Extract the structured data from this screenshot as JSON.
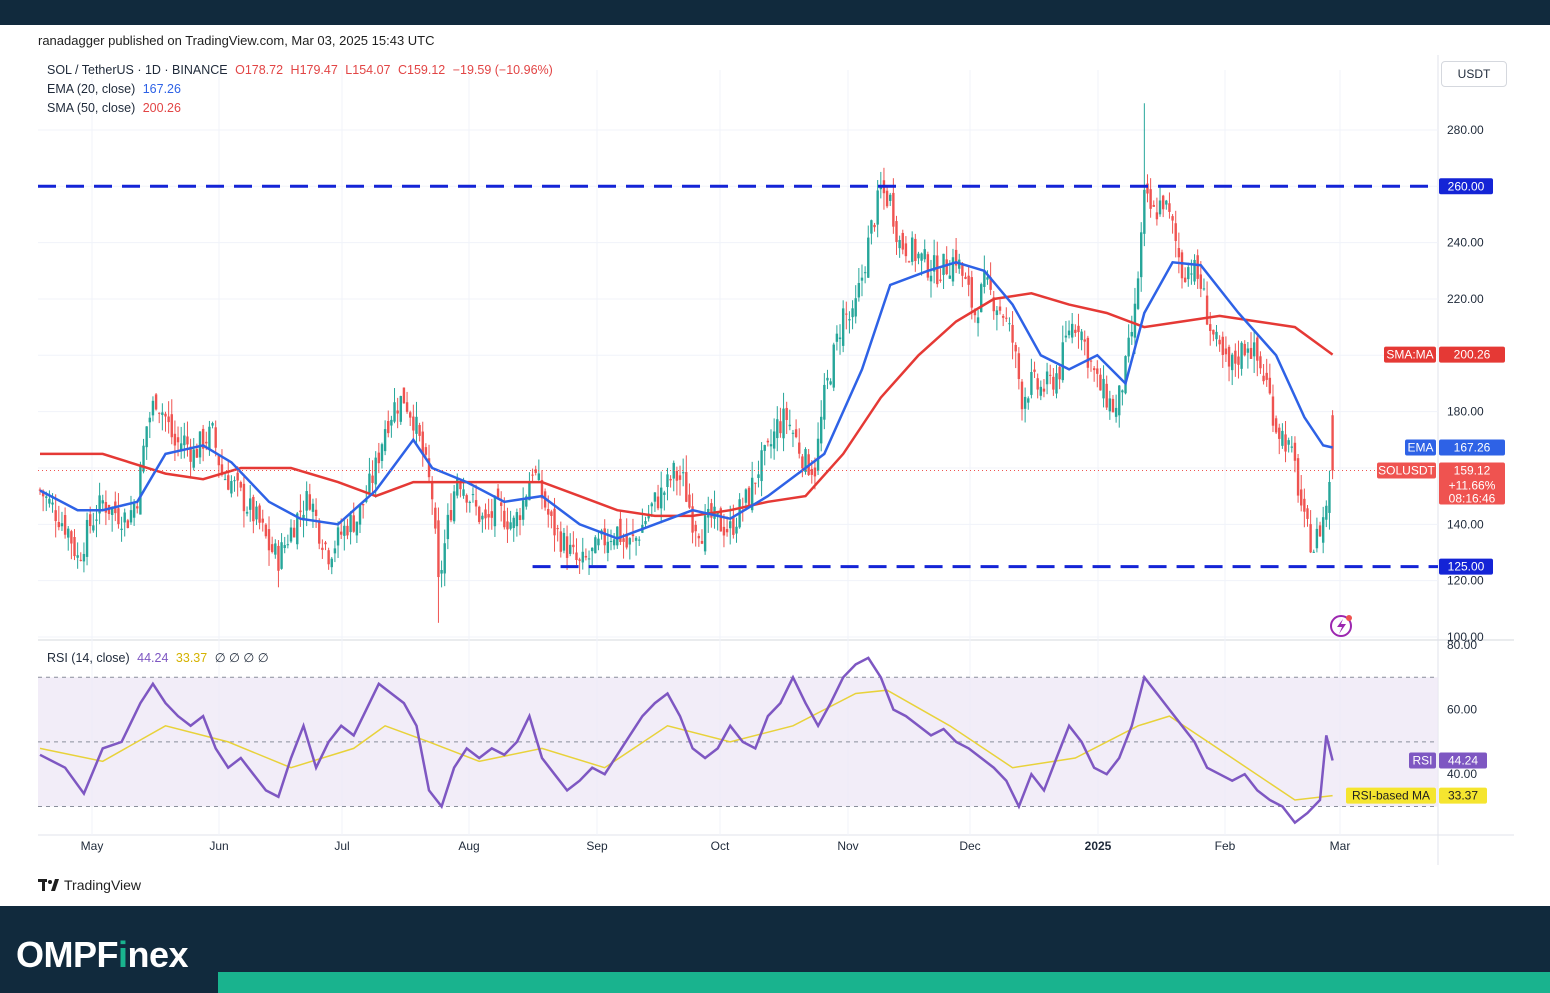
{
  "publisher": "ranadagger published on TradingView.com, Mar 03, 2025 15:43 UTC",
  "currency_button": "USDT",
  "legend": {
    "symbol": "SOL / TetherUS · 1D · BINANCE",
    "open": "O178.72",
    "high": "H179.47",
    "low": "L154.07",
    "close": "C159.12",
    "change": "−19.59 (−10.96%)",
    "ema_label": "EMA (20, close)",
    "ema_value": "167.26",
    "sma_label": "SMA (50, close)",
    "sma_value": "200.26",
    "rsi_label": "RSI (14, close)",
    "rsi_value": "44.24",
    "rsi_ma_value": "33.37",
    "rsi_extra": "∅ ∅ ∅ ∅"
  },
  "footer_logo": "TradingView",
  "brand": {
    "part1": "OMPF",
    "part2": "i",
    "part3": "nex"
  },
  "colors": {
    "up": "#26a69a",
    "down": "#ef5350",
    "ema": "#2e62e6",
    "sma": "#e53935",
    "level": "#1424d6",
    "rsi": "#7e57c2",
    "rsi_ma": "#e8d23a",
    "band_dark": "#112a3d",
    "band_accent": "#19b38e"
  },
  "chart_data": {
    "type": "candlestick",
    "price_axis": {
      "min": 100,
      "max": 300,
      "ticks": [
        "100.00",
        "120.00",
        "140.00",
        "180.00",
        "220.00",
        "240.00",
        "280.00"
      ]
    },
    "rsi_axis": {
      "min": 20,
      "max": 80,
      "ticks": [
        "40.00",
        "60.00",
        "80.00"
      ],
      "bands": [
        30,
        70
      ],
      "mid": 50
    },
    "time_axis": [
      "May",
      "Jun",
      "Jul",
      "Aug",
      "Sep",
      "Oct",
      "Nov",
      "Dec",
      "2025",
      "Feb",
      "Mar"
    ],
    "horizontal_levels": [
      {
        "value": 260,
        "label": "260.00"
      },
      {
        "value": 125,
        "label": "125.00"
      }
    ],
    "price_tags": [
      {
        "name": "SMA:MA",
        "value": 200.26,
        "label": "200.26"
      },
      {
        "name": "EMA",
        "value": 167.26,
        "label": "167.26"
      },
      {
        "name": "SOLUSDT",
        "value": 159.12,
        "label": "159.12",
        "change": "+11.66%",
        "countdown": "08:16:46"
      }
    ],
    "rsi_tags": [
      {
        "name": "RSI",
        "value": 44.24,
        "label": "44.24"
      },
      {
        "name": "RSI-based MA",
        "value": 33.37,
        "label": "33.37"
      }
    ],
    "close_path": [
      [
        0,
        152
      ],
      [
        4,
        146
      ],
      [
        9,
        138
      ],
      [
        12,
        128
      ],
      [
        16,
        140
      ],
      [
        20,
        148
      ],
      [
        23,
        145
      ],
      [
        28,
        142
      ],
      [
        31,
        150
      ],
      [
        34,
        175
      ],
      [
        37,
        185
      ],
      [
        40,
        178
      ],
      [
        43,
        168
      ],
      [
        46,
        170
      ],
      [
        49,
        165
      ],
      [
        52,
        170
      ],
      [
        55,
        172
      ],
      [
        58,
        158
      ],
      [
        61,
        155
      ],
      [
        64,
        150
      ],
      [
        67,
        145
      ],
      [
        70,
        140
      ],
      [
        73,
        132
      ],
      [
        76,
        128
      ],
      [
        80,
        138
      ],
      [
        83,
        145
      ],
      [
        86,
        150
      ],
      [
        89,
        138
      ],
      [
        92,
        130
      ],
      [
        95,
        135
      ],
      [
        98,
        140
      ],
      [
        101,
        142
      ],
      [
        104,
        150
      ],
      [
        107,
        160
      ],
      [
        110,
        175
      ],
      [
        113,
        182
      ],
      [
        116,
        185
      ],
      [
        119,
        178
      ],
      [
        122,
        165
      ],
      [
        125,
        150
      ],
      [
        127,
        118
      ],
      [
        130,
        140
      ],
      [
        133,
        158
      ],
      [
        136,
        152
      ],
      [
        139,
        145
      ],
      [
        142,
        140
      ],
      [
        145,
        145
      ],
      [
        148,
        143
      ],
      [
        151,
        140
      ],
      [
        154,
        148
      ],
      [
        157,
        160
      ],
      [
        160,
        150
      ],
      [
        163,
        140
      ],
      [
        166,
        135
      ],
      [
        169,
        130
      ],
      [
        172,
        125
      ],
      [
        175,
        128
      ],
      [
        178,
        132
      ],
      [
        181,
        136
      ],
      [
        184,
        138
      ],
      [
        187,
        132
      ],
      [
        190,
        135
      ],
      [
        193,
        142
      ],
      [
        196,
        148
      ],
      [
        199,
        152
      ],
      [
        202,
        158
      ],
      [
        205,
        155
      ],
      [
        208,
        142
      ],
      [
        211,
        138
      ],
      [
        214,
        142
      ],
      [
        217,
        140
      ],
      [
        220,
        138
      ],
      [
        223,
        145
      ],
      [
        226,
        150
      ],
      [
        229,
        160
      ],
      [
        232,
        165
      ],
      [
        235,
        175
      ],
      [
        238,
        178
      ],
      [
        241,
        170
      ],
      [
        244,
        162
      ],
      [
        247,
        160
      ],
      [
        250,
        185
      ],
      [
        253,
        200
      ],
      [
        256,
        215
      ],
      [
        259,
        212
      ],
      [
        262,
        228
      ],
      [
        265,
        245
      ],
      [
        268,
        258
      ],
      [
        271,
        255
      ],
      [
        274,
        240
      ],
      [
        277,
        238
      ],
      [
        280,
        235
      ],
      [
        283,
        232
      ],
      [
        286,
        230
      ],
      [
        289,
        232
      ],
      [
        292,
        235
      ],
      [
        295,
        225
      ],
      [
        298,
        215
      ],
      [
        301,
        225
      ],
      [
        304,
        220
      ],
      [
        307,
        215
      ],
      [
        310,
        205
      ],
      [
        313,
        185
      ],
      [
        316,
        190
      ],
      [
        319,
        188
      ],
      [
        322,
        190
      ],
      [
        325,
        195
      ],
      [
        328,
        210
      ],
      [
        331,
        212
      ],
      [
        334,
        200
      ],
      [
        337,
        190
      ],
      [
        340,
        185
      ],
      [
        343,
        180
      ],
      [
        346,
        195
      ],
      [
        349,
        215
      ],
      [
        352,
        255
      ],
      [
        355,
        250
      ],
      [
        358,
        255
      ],
      [
        361,
        245
      ],
      [
        364,
        230
      ],
      [
        367,
        232
      ],
      [
        370,
        225
      ],
      [
        373,
        210
      ],
      [
        376,
        200
      ],
      [
        379,
        195
      ],
      [
        382,
        200
      ],
      [
        385,
        205
      ],
      [
        388,
        198
      ],
      [
        391,
        190
      ],
      [
        394,
        175
      ],
      [
        397,
        170
      ],
      [
        400,
        160
      ],
      [
        403,
        140
      ],
      [
        406,
        132
      ],
      [
        409,
        142
      ],
      [
        412,
        159
      ]
    ],
    "ema_path": [
      [
        0,
        152
      ],
      [
        12,
        145
      ],
      [
        20,
        145
      ],
      [
        31,
        148
      ],
      [
        40,
        165
      ],
      [
        52,
        168
      ],
      [
        61,
        162
      ],
      [
        73,
        148
      ],
      [
        83,
        142
      ],
      [
        95,
        140
      ],
      [
        107,
        152
      ],
      [
        119,
        170
      ],
      [
        125,
        160
      ],
      [
        136,
        155
      ],
      [
        148,
        148
      ],
      [
        160,
        150
      ],
      [
        172,
        140
      ],
      [
        184,
        135
      ],
      [
        196,
        140
      ],
      [
        208,
        145
      ],
      [
        220,
        142
      ],
      [
        232,
        150
      ],
      [
        244,
        160
      ],
      [
        250,
        165
      ],
      [
        262,
        195
      ],
      [
        271,
        225
      ],
      [
        283,
        230
      ],
      [
        292,
        233
      ],
      [
        301,
        230
      ],
      [
        310,
        218
      ],
      [
        319,
        200
      ],
      [
        328,
        195
      ],
      [
        337,
        200
      ],
      [
        346,
        190
      ],
      [
        352,
        215
      ],
      [
        361,
        233
      ],
      [
        370,
        232
      ],
      [
        382,
        215
      ],
      [
        394,
        200
      ],
      [
        403,
        178
      ],
      [
        409,
        168
      ],
      [
        412,
        167.26
      ]
    ],
    "sma_path": [
      [
        0,
        165
      ],
      [
        20,
        165
      ],
      [
        40,
        158
      ],
      [
        52,
        156
      ],
      [
        64,
        160
      ],
      [
        80,
        160
      ],
      [
        95,
        155
      ],
      [
        107,
        150
      ],
      [
        119,
        155
      ],
      [
        130,
        155
      ],
      [
        148,
        155
      ],
      [
        160,
        155
      ],
      [
        172,
        150
      ],
      [
        184,
        145
      ],
      [
        196,
        143
      ],
      [
        208,
        143
      ],
      [
        220,
        145
      ],
      [
        232,
        148
      ],
      [
        244,
        150
      ],
      [
        256,
        165
      ],
      [
        268,
        185
      ],
      [
        280,
        200
      ],
      [
        292,
        212
      ],
      [
        304,
        220
      ],
      [
        316,
        222
      ],
      [
        328,
        218
      ],
      [
        340,
        215
      ],
      [
        352,
        210
      ],
      [
        364,
        212
      ],
      [
        376,
        214
      ],
      [
        388,
        212
      ],
      [
        400,
        210
      ],
      [
        412,
        200.26
      ]
    ],
    "rsi_path": [
      [
        0,
        46
      ],
      [
        8,
        42
      ],
      [
        14,
        34
      ],
      [
        20,
        48
      ],
      [
        26,
        50
      ],
      [
        32,
        62
      ],
      [
        36,
        68
      ],
      [
        40,
        62
      ],
      [
        44,
        58
      ],
      [
        48,
        55
      ],
      [
        52,
        58
      ],
      [
        56,
        48
      ],
      [
        60,
        42
      ],
      [
        64,
        45
      ],
      [
        68,
        40
      ],
      [
        72,
        35
      ],
      [
        76,
        33
      ],
      [
        80,
        45
      ],
      [
        84,
        55
      ],
      [
        88,
        42
      ],
      [
        92,
        50
      ],
      [
        96,
        55
      ],
      [
        100,
        52
      ],
      [
        104,
        60
      ],
      [
        108,
        68
      ],
      [
        112,
        65
      ],
      [
        116,
        62
      ],
      [
        120,
        55
      ],
      [
        124,
        35
      ],
      [
        128,
        30
      ],
      [
        132,
        42
      ],
      [
        136,
        48
      ],
      [
        140,
        45
      ],
      [
        144,
        48
      ],
      [
        148,
        46
      ],
      [
        152,
        50
      ],
      [
        156,
        58
      ],
      [
        160,
        45
      ],
      [
        164,
        40
      ],
      [
        168,
        35
      ],
      [
        172,
        38
      ],
      [
        176,
        42
      ],
      [
        180,
        40
      ],
      [
        184,
        46
      ],
      [
        188,
        52
      ],
      [
        192,
        58
      ],
      [
        196,
        62
      ],
      [
        200,
        65
      ],
      [
        204,
        58
      ],
      [
        208,
        48
      ],
      [
        212,
        45
      ],
      [
        216,
        48
      ],
      [
        220,
        55
      ],
      [
        224,
        50
      ],
      [
        228,
        48
      ],
      [
        232,
        58
      ],
      [
        236,
        62
      ],
      [
        240,
        70
      ],
      [
        244,
        62
      ],
      [
        248,
        55
      ],
      [
        252,
        62
      ],
      [
        256,
        70
      ],
      [
        260,
        74
      ],
      [
        264,
        76
      ],
      [
        268,
        70
      ],
      [
        272,
        60
      ],
      [
        276,
        58
      ],
      [
        280,
        55
      ],
      [
        284,
        52
      ],
      [
        288,
        54
      ],
      [
        292,
        50
      ],
      [
        296,
        48
      ],
      [
        300,
        45
      ],
      [
        304,
        42
      ],
      [
        308,
        38
      ],
      [
        312,
        30
      ],
      [
        316,
        40
      ],
      [
        320,
        35
      ],
      [
        324,
        45
      ],
      [
        328,
        55
      ],
      [
        332,
        50
      ],
      [
        336,
        42
      ],
      [
        340,
        40
      ],
      [
        344,
        45
      ],
      [
        348,
        55
      ],
      [
        352,
        70
      ],
      [
        356,
        65
      ],
      [
        360,
        60
      ],
      [
        364,
        55
      ],
      [
        368,
        50
      ],
      [
        372,
        42
      ],
      [
        376,
        40
      ],
      [
        380,
        38
      ],
      [
        384,
        40
      ],
      [
        388,
        35
      ],
      [
        392,
        32
      ],
      [
        396,
        30
      ],
      [
        400,
        25
      ],
      [
        404,
        28
      ],
      [
        408,
        32
      ],
      [
        410,
        52
      ],
      [
        412,
        44.24
      ]
    ],
    "rsi_ma_path": [
      [
        0,
        48
      ],
      [
        20,
        44
      ],
      [
        40,
        55
      ],
      [
        60,
        50
      ],
      [
        80,
        42
      ],
      [
        100,
        48
      ],
      [
        110,
        55
      ],
      [
        124,
        50
      ],
      [
        140,
        44
      ],
      [
        160,
        48
      ],
      [
        180,
        42
      ],
      [
        200,
        55
      ],
      [
        220,
        50
      ],
      [
        240,
        55
      ],
      [
        260,
        65
      ],
      [
        270,
        66
      ],
      [
        290,
        55
      ],
      [
        310,
        42
      ],
      [
        330,
        45
      ],
      [
        350,
        55
      ],
      [
        360,
        58
      ],
      [
        380,
        45
      ],
      [
        400,
        32
      ],
      [
        412,
        33.37
      ]
    ]
  }
}
